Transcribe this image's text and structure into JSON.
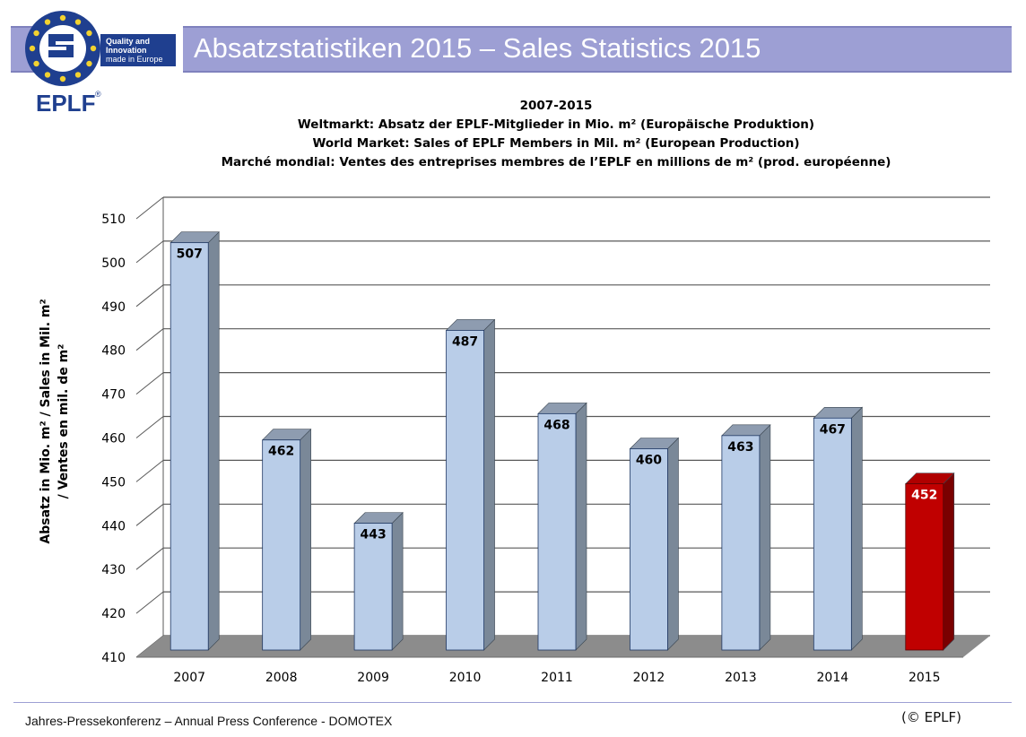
{
  "header": {
    "title": "Absatzstatistiken 2015 – Sales Statistics 2015"
  },
  "logo": {
    "brand": "EPLF",
    "registered": "®",
    "tagline": [
      "Quality and",
      "Innovation",
      "made in Europe"
    ]
  },
  "chart_data": {
    "type": "bar",
    "title_lines": [
      "2007-2015",
      "Weltmarkt: Absatz der EPLF-Mitglieder in Mio. m² (Europäische Produktion)",
      "World Market: Sales of EPLF Members in Mil. m² (European Production)",
      "Marché mondial: Ventes des entreprises membres de l’EPLF en millions de m² (prod. européenne)"
    ],
    "ylabel_lines": [
      "Absatz in Mio. m² / Sales in Mil. m²",
      "/ Ventes en mil. de m²"
    ],
    "categories": [
      "2007",
      "2008",
      "2009",
      "2010",
      "2011",
      "2012",
      "2013",
      "2014",
      "2015"
    ],
    "values": [
      507,
      462,
      443,
      487,
      468,
      460,
      463,
      467,
      452
    ],
    "labels": [
      "507",
      "462",
      "443",
      "487",
      "468",
      "460",
      "463",
      "467",
      "452"
    ],
    "highlight_index": 8,
    "ylim": [
      410,
      510
    ],
    "yticks": [
      410,
      420,
      430,
      440,
      450,
      460,
      470,
      480,
      490,
      500,
      510
    ],
    "grid": true,
    "colors": {
      "bar_front": "#b9cde8",
      "bar_side": "#7a8898",
      "bar_top": "#8e9cb0",
      "highlight_front": "#c00000",
      "highlight_side": "#7a0000",
      "highlight_top": "#b00000",
      "floor": "#8c8c8c",
      "grid": "#595959"
    }
  },
  "footer": {
    "text": "Jahres-Pressekonferenz – Annual Press Conference - DOMOTEX",
    "copyright": "(© EPLF)"
  }
}
